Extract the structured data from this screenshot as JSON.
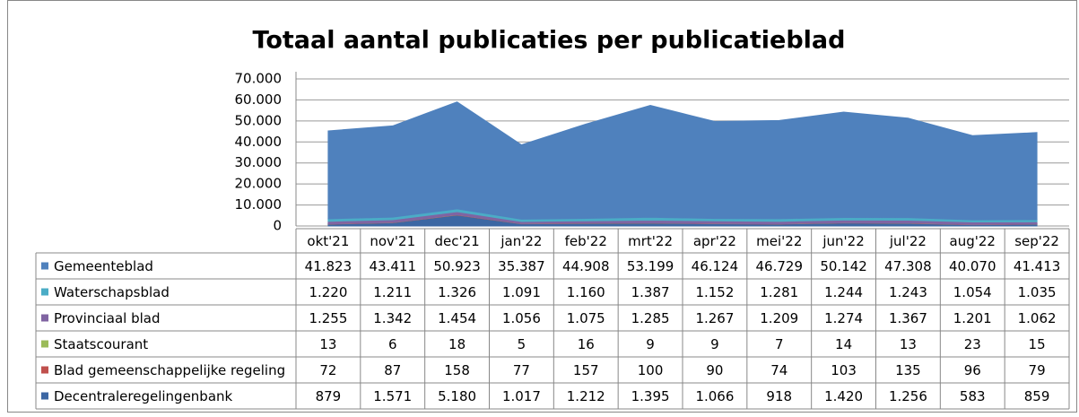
{
  "chart_data": {
    "type": "stacked-area",
    "title": "Totaal aantal publicaties per publicatieblad",
    "categories": [
      "okt'21",
      "nov'21",
      "dec'21",
      "jan'22",
      "feb'22",
      "mrt'22",
      "apr'22",
      "mei'22",
      "jun'22",
      "jul'22",
      "aug'22",
      "sep'22"
    ],
    "ylim": [
      0,
      70000
    ],
    "yticks": [
      0,
      {
        "value": 10000,
        "label": "10.000"
      },
      {
        "value": 20000,
        "label": "20.000"
      },
      {
        "value": 30000,
        "label": "30.000"
      },
      {
        "value": 40000,
        "label": "40.000"
      },
      {
        "value": 50000,
        "label": "50.000"
      },
      {
        "value": 60000,
        "label": "60.000"
      },
      {
        "value": 70000,
        "label": "70.000"
      }
    ],
    "grid": true,
    "series": [
      {
        "name": "Gemeenteblad",
        "color": "#4f81bd",
        "values": [
          41823,
          43411,
          50923,
          35387,
          44908,
          53199,
          46124,
          46729,
          50142,
          47308,
          40070,
          41413
        ],
        "value_labels": [
          "41.823",
          "43.411",
          "50.923",
          "35.387",
          "44.908",
          "53.199",
          "46.124",
          "46.729",
          "50.142",
          "47.308",
          "40.070",
          "41.413"
        ]
      },
      {
        "name": "Waterschapsblad",
        "color": "#4bacc6",
        "values": [
          1220,
          1211,
          1326,
          1091,
          1160,
          1387,
          1152,
          1281,
          1244,
          1243,
          1054,
          1035
        ],
        "value_labels": [
          "1.220",
          "1.211",
          "1.326",
          "1.091",
          "1.160",
          "1.387",
          "1.152",
          "1.281",
          "1.244",
          "1.243",
          "1.054",
          "1.035"
        ]
      },
      {
        "name": "Provinciaal blad",
        "color": "#8064a2",
        "values": [
          1255,
          1342,
          1454,
          1056,
          1075,
          1285,
          1267,
          1209,
          1274,
          1367,
          1201,
          1062
        ],
        "value_labels": [
          "1.255",
          "1.342",
          "1.454",
          "1.056",
          "1.075",
          "1.285",
          "1.267",
          "1.209",
          "1.274",
          "1.367",
          "1.201",
          "1.062"
        ]
      },
      {
        "name": "Staatscourant",
        "color": "#9bbb59",
        "values": [
          13,
          6,
          18,
          5,
          16,
          9,
          9,
          7,
          14,
          13,
          23,
          15
        ]
      },
      {
        "name": "Blad gemeenschappelijke regeling",
        "color": "#c0504d",
        "values": [
          72,
          87,
          158,
          77,
          157,
          100,
          90,
          74,
          103,
          135,
          96,
          79
        ]
      },
      {
        "name": "Decentraleregelingenbank",
        "color": "#3c67a3",
        "values": [
          879,
          1571,
          5180,
          1017,
          1212,
          1395,
          1066,
          918,
          1420,
          1256,
          583,
          859
        ],
        "value_labels": [
          "879",
          "1.571",
          "5.180",
          "1.017",
          "1.212",
          "1.395",
          "1.066",
          "918",
          "1.420",
          "1.256",
          "583",
          "859"
        ]
      }
    ]
  }
}
